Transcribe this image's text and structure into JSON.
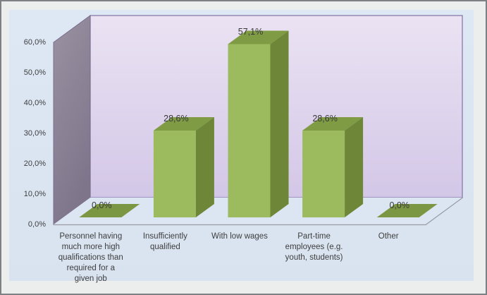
{
  "window": {
    "frame_background": "#eceded",
    "frame_border_color": "#7e8184"
  },
  "chart": {
    "area_background": "#dce6f2",
    "back_wall_top_color": "#ebe3f3",
    "back_wall_bottom_color": "#d3c7e7",
    "wall_border_color": "#8879a8",
    "side_wall_top_color": "#9a93a1",
    "side_wall_bottom_color": "#7e758b",
    "side_wall_border_color": "#7b6d90",
    "floor_edge_color": "#999aa4",
    "bar_front_color": "#9cba5e",
    "bar_top_color": "#7f9c45",
    "bar_side_color": "#6d8637",
    "bar_flat_color": "#7b9743",
    "text_color": "#3d3d3d"
  },
  "chart_data": {
    "type": "bar",
    "style": "3d-column",
    "title": "",
    "xlabel": "",
    "ylabel": "",
    "grid": false,
    "legend": false,
    "number_format": "decimal-comma-percent",
    "ylim": [
      0,
      60
    ],
    "ytick_values": [
      0,
      10,
      20,
      30,
      40,
      50,
      60
    ],
    "ytick_labels": [
      "0,0%",
      "10,0%",
      "20,0%",
      "30,0%",
      "40,0%",
      "50,0%",
      "60,0%"
    ],
    "categories": [
      "Personnel having much more high qualifications than required for a given job",
      "Insufficiently qualified",
      "With low wages",
      "Part-time employees (e.g. youth, students)",
      "Other"
    ],
    "category_lines": [
      [
        "Personnel having",
        "much more high",
        "qualifications than",
        "required for a",
        "given job"
      ],
      [
        "Insufficiently",
        "qualified"
      ],
      [
        "With low wages"
      ],
      [
        "Part-time",
        "employees (e.g.",
        "youth, students)"
      ],
      [
        "Other"
      ]
    ],
    "values": [
      0.0,
      28.6,
      57.1,
      28.6,
      0.0
    ],
    "value_labels": [
      "0,0%",
      "28,6%",
      "57,1%",
      "28,6%",
      "0,0%"
    ]
  }
}
